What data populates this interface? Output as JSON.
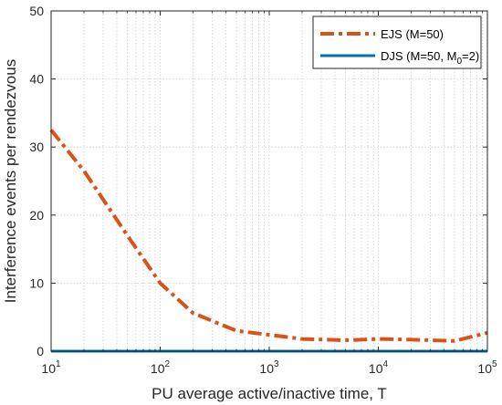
{
  "chart_data": {
    "type": "line",
    "xscale": "log",
    "xlabel": "PU average active/inactive time, T",
    "ylabel": "Interference events per rendezvous",
    "xlim": [
      10,
      100000
    ],
    "ylim": [
      0,
      50
    ],
    "xticks": [
      10,
      100,
      1000,
      10000,
      100000
    ],
    "xtick_labels": [
      {
        "base": "10",
        "exp": "1"
      },
      {
        "base": "10",
        "exp": "2"
      },
      {
        "base": "10",
        "exp": "3"
      },
      {
        "base": "10",
        "exp": "4"
      },
      {
        "base": "10",
        "exp": "5"
      }
    ],
    "yticks": [
      0,
      10,
      20,
      30,
      40,
      50
    ],
    "ytick_labels": [
      "0",
      "10",
      "20",
      "30",
      "40",
      "50"
    ],
    "grid": true,
    "legend_position": "top-right",
    "series": [
      {
        "name": "EJS (M=50)",
        "color": "#d95319",
        "style": "dash-dot",
        "x": [
          10,
          20,
          50,
          100,
          200,
          500,
          1000,
          2000,
          5000,
          10000,
          20000,
          50000,
          100000
        ],
        "y": [
          32.5,
          26.5,
          17.0,
          10.0,
          5.6,
          3.0,
          2.4,
          1.8,
          1.6,
          1.8,
          1.7,
          1.5,
          2.7
        ]
      },
      {
        "name": "DJS (M=50, M",
        "name_sub": "0",
        "name_tail": "=2)",
        "color": "#0072bd",
        "style": "solid",
        "x": [
          10,
          100000
        ],
        "y": [
          0,
          0
        ]
      }
    ]
  }
}
